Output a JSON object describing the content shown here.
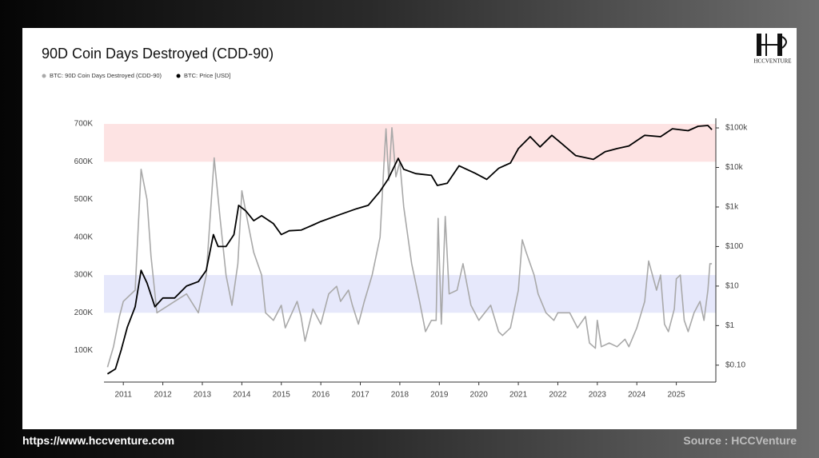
{
  "logo": "HCCVENTURE",
  "footer": {
    "url": "https://www.hccventure.com",
    "source": "Source : HCCVenture"
  },
  "chart_data": {
    "type": "line",
    "title": "90D Coin Days Destroyed (CDD-90)",
    "xlim": [
      2010.51,
      2026.0
    ],
    "xticks": [
      2011,
      2012,
      2013,
      2014,
      2015,
      2016,
      2017,
      2018,
      2019,
      2020,
      2021,
      2022,
      2023,
      2024,
      2025
    ],
    "ylim": [
      25000,
      715000
    ],
    "yticks": [
      {
        "value": 100000,
        "label": "100K"
      },
      {
        "value": 200000,
        "label": "200K"
      },
      {
        "value": 300000,
        "label": "300K"
      },
      {
        "value": 400000,
        "label": "400K"
      },
      {
        "value": 500000,
        "label": "500K"
      },
      {
        "value": 600000,
        "label": "600K"
      },
      {
        "value": 700000,
        "label": "700K"
      }
    ],
    "y2lim": [
      0.045,
      175000
    ],
    "y2log": true,
    "y2ticks": [
      {
        "value": 0.1,
        "label": "$0.10"
      },
      {
        "value": 1,
        "label": "$1"
      },
      {
        "value": 10,
        "label": "$10"
      },
      {
        "value": 100,
        "label": "$100"
      },
      {
        "value": 1000,
        "label": "$1k"
      },
      {
        "value": 10000,
        "label": "$10k"
      },
      {
        "value": 100000,
        "label": "$100k"
      }
    ],
    "bands": [
      {
        "from": 600000,
        "to": 700000,
        "color": "#fde3e3"
      },
      {
        "from": 200000,
        "to": 300000,
        "color": "#e6e8fb"
      }
    ],
    "series": [
      {
        "name": "BTC: 90D Coin Days Destroyed (CDD-90)",
        "color": "#a9a9a9",
        "x": [
          2010.6,
          2010.75,
          2010.9,
          2011.0,
          2011.3,
          2011.45,
          2011.6,
          2011.7,
          2011.85,
          2012.0,
          2012.3,
          2012.6,
          2012.9,
          2013.1,
          2013.3,
          2013.45,
          2013.6,
          2013.75,
          2013.9,
          2014.0,
          2014.15,
          2014.3,
          2014.5,
          2014.6,
          2014.8,
          2015.0,
          2015.1,
          2015.4,
          2015.5,
          2015.6,
          2015.8,
          2016.0,
          2016.2,
          2016.4,
          2016.5,
          2016.7,
          2016.8,
          2016.95,
          2017.1,
          2017.3,
          2017.5,
          2017.6,
          2017.65,
          2017.72,
          2017.8,
          2017.9,
          2018.0,
          2018.1,
          2018.3,
          2018.5,
          2018.65,
          2018.8,
          2018.92,
          2018.97,
          2019.05,
          2019.15,
          2019.25,
          2019.45,
          2019.6,
          2019.8,
          2020.0,
          2020.3,
          2020.5,
          2020.6,
          2020.8,
          2021.0,
          2021.1,
          2021.2,
          2021.4,
          2021.5,
          2021.7,
          2021.9,
          2022.0,
          2022.3,
          2022.5,
          2022.7,
          2022.8,
          2022.95,
          2023.0,
          2023.1,
          2023.3,
          2023.5,
          2023.7,
          2023.8,
          2024.0,
          2024.2,
          2024.3,
          2024.5,
          2024.6,
          2024.7,
          2024.8,
          2024.95,
          2025.0,
          2025.1,
          2025.2,
          2025.3,
          2025.45,
          2025.6,
          2025.7,
          2025.8,
          2025.85,
          2025.9
        ],
        "values": [
          56000,
          110000,
          190000,
          230000,
          260000,
          580000,
          500000,
          350000,
          200000,
          210000,
          230000,
          250000,
          200000,
          300000,
          610000,
          450000,
          300000,
          220000,
          330000,
          523000,
          440000,
          360000,
          300000,
          200000,
          180000,
          220000,
          160000,
          230000,
          190000,
          125000,
          210000,
          170000,
          250000,
          270000,
          230000,
          260000,
          220000,
          170000,
          230000,
          300000,
          400000,
          600000,
          687000,
          550000,
          690000,
          560000,
          600000,
          480000,
          330000,
          230000,
          150000,
          180000,
          180000,
          450000,
          170000,
          455000,
          250000,
          260000,
          330000,
          220000,
          180000,
          220000,
          150000,
          140000,
          160000,
          260000,
          393000,
          360000,
          300000,
          250000,
          200000,
          180000,
          200000,
          200000,
          160000,
          190000,
          120000,
          106000,
          180000,
          110000,
          120000,
          110000,
          130000,
          110000,
          160000,
          230000,
          337000,
          260000,
          300000,
          170000,
          150000,
          210000,
          290000,
          300000,
          180000,
          150000,
          200000,
          230000,
          180000,
          260000,
          330000,
          330000
        ]
      },
      {
        "name": "BTC: Price [USD]",
        "color": "#000000",
        "axis": "y2",
        "x": [
          2010.6,
          2010.8,
          2010.95,
          2011.1,
          2011.3,
          2011.45,
          2011.6,
          2011.8,
          2012.0,
          2012.3,
          2012.6,
          2012.9,
          2013.1,
          2013.28,
          2013.4,
          2013.6,
          2013.8,
          2013.92,
          2014.1,
          2014.3,
          2014.5,
          2014.8,
          2015.0,
          2015.2,
          2015.5,
          2015.8,
          2016.0,
          2016.5,
          2016.9,
          2017.2,
          2017.5,
          2017.7,
          2017.96,
          2018.1,
          2018.4,
          2018.8,
          2018.95,
          2019.2,
          2019.5,
          2019.9,
          2020.2,
          2020.5,
          2020.8,
          2021.0,
          2021.3,
          2021.55,
          2021.85,
          2022.1,
          2022.45,
          2022.9,
          2023.2,
          2023.5,
          2023.8,
          2024.2,
          2024.6,
          2024.9,
          2025.3,
          2025.55,
          2025.8,
          2025.9
        ],
        "values": [
          0.06,
          0.08,
          0.25,
          0.9,
          3,
          25,
          12,
          3,
          5,
          5,
          10,
          13,
          25,
          200,
          100,
          100,
          200,
          1100,
          800,
          450,
          600,
          380,
          200,
          250,
          260,
          350,
          430,
          650,
          900,
          1100,
          2500,
          5000,
          17000,
          9000,
          7000,
          6300,
          3500,
          4000,
          11000,
          7200,
          5000,
          9500,
          13000,
          30000,
          60000,
          33000,
          65000,
          40000,
          20000,
          16000,
          25000,
          30000,
          35000,
          65000,
          60000,
          95000,
          85000,
          110000,
          115000,
          90000
        ]
      }
    ]
  }
}
